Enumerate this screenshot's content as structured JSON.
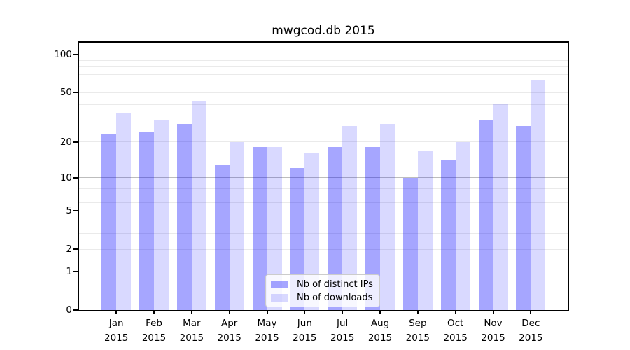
{
  "chart_data": {
    "type": "bar",
    "title": "mwgcod.db 2015",
    "categories": [
      "Jan 2015",
      "Feb 2015",
      "Mar 2015",
      "Apr 2015",
      "May 2015",
      "Jun 2015",
      "Jul 2015",
      "Aug 2015",
      "Sep 2015",
      "Oct 2015",
      "Nov 2015",
      "Dec 2015"
    ],
    "x_months": [
      "Jan",
      "Feb",
      "Mar",
      "Apr",
      "May",
      "Jun",
      "Jul",
      "Aug",
      "Sep",
      "Oct",
      "Nov",
      "Dec"
    ],
    "x_year": "2015",
    "series": [
      {
        "name": "Nb of distinct IPs",
        "color": "rgba(0,0,255,0.35)",
        "values": [
          23,
          24,
          28,
          13,
          18,
          12,
          18,
          18,
          10,
          14,
          30,
          27
        ]
      },
      {
        "name": "Nb of downloads",
        "color": "rgba(0,0,255,0.15)",
        "values": [
          34,
          30,
          43,
          20,
          18,
          16,
          27,
          28,
          17,
          20,
          41,
          63
        ]
      }
    ],
    "yscale": "log1p",
    "ylim": [
      0,
      125
    ],
    "ytick_values": [
      0,
      1,
      2,
      5,
      10,
      20,
      50,
      100
    ],
    "ytick_labels": [
      "0",
      "1",
      "2",
      "5",
      "10",
      "20",
      "50",
      "100"
    ],
    "major_gridlines": [
      1,
      10,
      100
    ],
    "minor_gridlines": [
      2,
      3,
      4,
      5,
      6,
      7,
      8,
      9,
      20,
      30,
      40,
      50,
      60,
      70,
      80,
      90,
      110,
      120
    ],
    "grid": true,
    "legend": {
      "position": "bottom-center"
    }
  },
  "colors": {
    "axis": "#000000",
    "major_grid": "#bdbdbd",
    "minor_grid": "#eaeaea",
    "legend_border": "#cccccc",
    "legend_background": "rgba(255,255,255,0.8)",
    "text": "#000000"
  }
}
